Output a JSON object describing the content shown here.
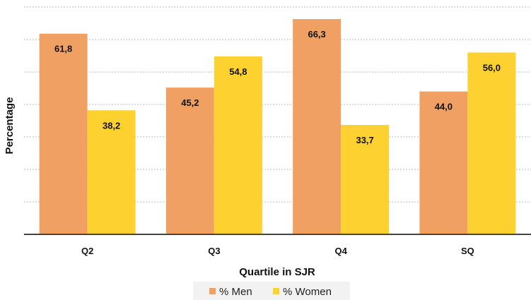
{
  "chart_data": {
    "type": "bar",
    "categories": [
      "Q2",
      "Q3",
      "Q4",
      "SQ"
    ],
    "series": [
      {
        "name": "% Men",
        "values": [
          61.8,
          45.2,
          66.3,
          44.0
        ],
        "labels": [
          "61,8",
          "45,2",
          "66,3",
          "44,0"
        ],
        "color": "#F1A063"
      },
      {
        "name": "% Women",
        "values": [
          38.2,
          54.8,
          33.7,
          56.0
        ],
        "labels": [
          "38,2",
          "54,8",
          "33,7",
          "56,0"
        ],
        "color": "#FDD12F"
      }
    ],
    "xlabel": "Quartile in SJR",
    "ylabel": "Percentage",
    "ylim": [
      0,
      70
    ],
    "grid": true,
    "legend": "bottom-center",
    "y_tick_labels_shown": false
  }
}
